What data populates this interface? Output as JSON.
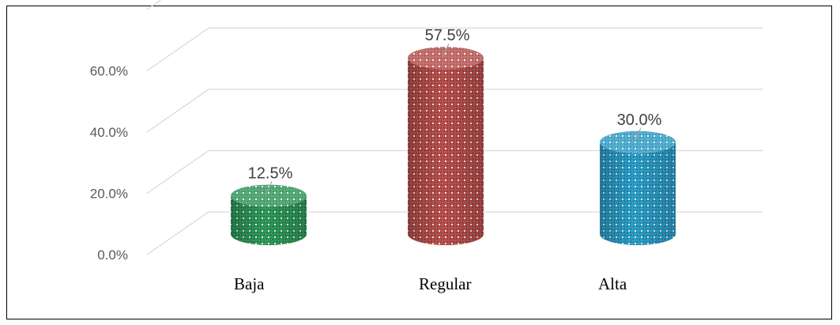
{
  "chart_data": {
    "type": "bar",
    "style": "3d-cylinder",
    "categories": [
      "Baja",
      "Regular",
      "Alta"
    ],
    "values": [
      12.5,
      57.5,
      30.0
    ],
    "data_labels": [
      "12.5%",
      "57.5%",
      "30.0%"
    ],
    "colors": [
      "#2e9e5b",
      "#c0504d",
      "#2aa3d0"
    ],
    "ylim": [
      0,
      60
    ],
    "yticks": [
      0,
      20,
      40,
      60
    ],
    "ytick_labels": [
      "0.0%",
      "20.0%",
      "40.0%",
      "60.0%"
    ],
    "grid": true,
    "legend": "none"
  }
}
